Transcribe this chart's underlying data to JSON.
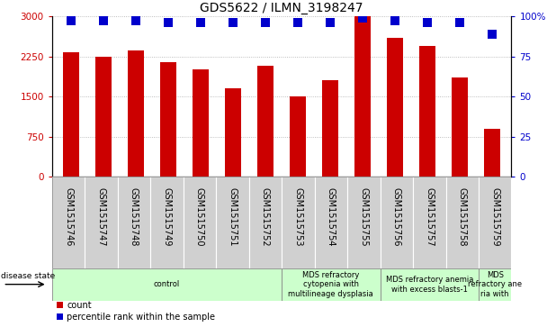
{
  "title": "GDS5622 / ILMN_3198247",
  "samples": [
    "GSM1515746",
    "GSM1515747",
    "GSM1515748",
    "GSM1515749",
    "GSM1515750",
    "GSM1515751",
    "GSM1515752",
    "GSM1515753",
    "GSM1515754",
    "GSM1515755",
    "GSM1515756",
    "GSM1515757",
    "GSM1515758",
    "GSM1515759"
  ],
  "counts": [
    2330,
    2250,
    2370,
    2150,
    2000,
    1650,
    2070,
    1500,
    1800,
    3000,
    2600,
    2450,
    1850,
    900
  ],
  "percentile_ranks": [
    97,
    97,
    97,
    96,
    96,
    96,
    96,
    96,
    96,
    99,
    97,
    96,
    96,
    89
  ],
  "bar_color": "#cc0000",
  "dot_color": "#0000cc",
  "ylim_left": [
    0,
    3000
  ],
  "ylim_right": [
    0,
    100
  ],
  "yticks_left": [
    0,
    750,
    1500,
    2250,
    3000
  ],
  "yticks_right": [
    0,
    25,
    50,
    75,
    100
  ],
  "ytick_labels_right": [
    "0",
    "25",
    "50",
    "75",
    "100%"
  ],
  "grid_color": "#aaaaaa",
  "disease_groups": [
    {
      "label": "control",
      "start": 0,
      "end": 7,
      "color": "#ccffcc"
    },
    {
      "label": "MDS refractory\ncytopenia with\nmultilineage dysplasia",
      "start": 7,
      "end": 10,
      "color": "#ccffcc"
    },
    {
      "label": "MDS refractory anemia\nwith excess blasts-1",
      "start": 10,
      "end": 13,
      "color": "#ccffcc"
    },
    {
      "label": "MDS\nrefractory ane\nria with",
      "start": 13,
      "end": 14,
      "color": "#ccffcc"
    }
  ],
  "disease_state_label": "disease state",
  "legend_count_label": "count",
  "legend_percentile_label": "percentile rank within the sample",
  "bar_width": 0.5,
  "dot_size": 55,
  "gray_box_color": "#d0d0d0",
  "axis_left_color": "#cc0000",
  "axis_right_color": "#0000cc",
  "title_fontsize": 10,
  "tick_fontsize": 7.5,
  "label_fontsize": 7,
  "group_label_fontsize": 6
}
